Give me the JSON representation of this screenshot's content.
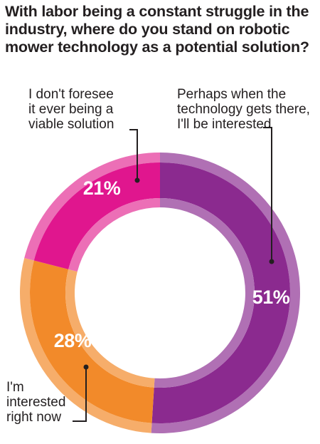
{
  "chart_data": {
    "type": "pie",
    "variant": "donut",
    "title": "With labor being a constant struggle in the industry, where do you stand on robotic mower technology as a potential solution?",
    "slices": [
      {
        "label": "Perhaps when the technology gets there, I'll be interested",
        "label_lines": [
          "Perhaps when the",
          "technology gets there,",
          "I'll be interested"
        ],
        "value": 51,
        "value_label": "51%",
        "color": "#8b2a8f",
        "rim_color": "#b070b4"
      },
      {
        "label": "I'm interested right now",
        "label_lines": [
          "I'm",
          "interested",
          "right now"
        ],
        "value": 28,
        "value_label": "28%",
        "color": "#f28a2a",
        "rim_color": "#f6ad6a"
      },
      {
        "label": "I don't foresee it ever being a viable solution",
        "label_lines": [
          "I don't foresee",
          "it ever being a",
          "viable solution"
        ],
        "value": 21,
        "value_label": "21%",
        "color": "#e0168e",
        "rim_color": "#ec6fb6"
      }
    ]
  }
}
